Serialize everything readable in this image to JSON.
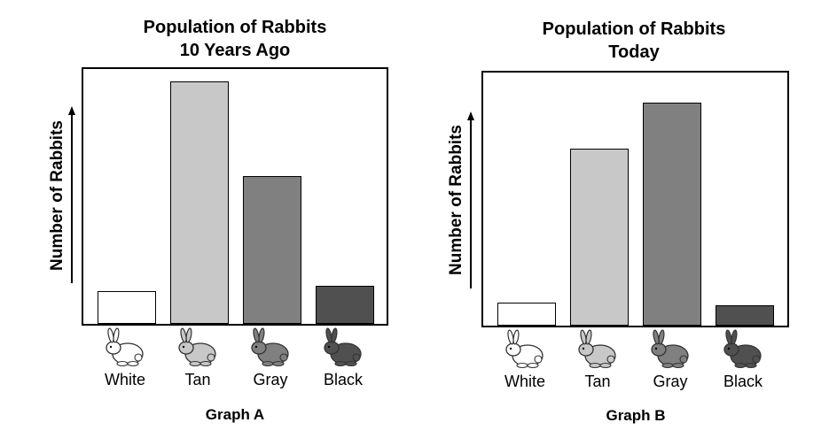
{
  "chart_data": [
    {
      "type": "bar",
      "title": "Population of Rabbits\n10 Years Ago",
      "title_lines": [
        "Population of Rabbits",
        "10 Years Ago"
      ],
      "ylabel": "Number of Rabbits",
      "graph_label": "Graph A",
      "categories": [
        "White",
        "Tan",
        "Gray",
        "Black"
      ],
      "values": [
        13,
        95,
        58,
        15
      ],
      "ylim": [
        0,
        100
      ],
      "colors": [
        "#ffffff",
        "#c8c8c8",
        "#808080",
        "#505050"
      ],
      "grid": false
    },
    {
      "type": "bar",
      "title": "Population of Rabbits\nToday",
      "title_lines": [
        "Population of Rabbits",
        "Today"
      ],
      "ylabel": "Number of Rabbits",
      "graph_label": "Graph B",
      "categories": [
        "White",
        "Tan",
        "Gray",
        "Black"
      ],
      "values": [
        9,
        70,
        88,
        8
      ],
      "ylim": [
        0,
        100
      ],
      "colors": [
        "#ffffff",
        "#c8c8c8",
        "#808080",
        "#505050"
      ],
      "grid": false
    }
  ],
  "icons": [
    "rabbit-icon"
  ]
}
